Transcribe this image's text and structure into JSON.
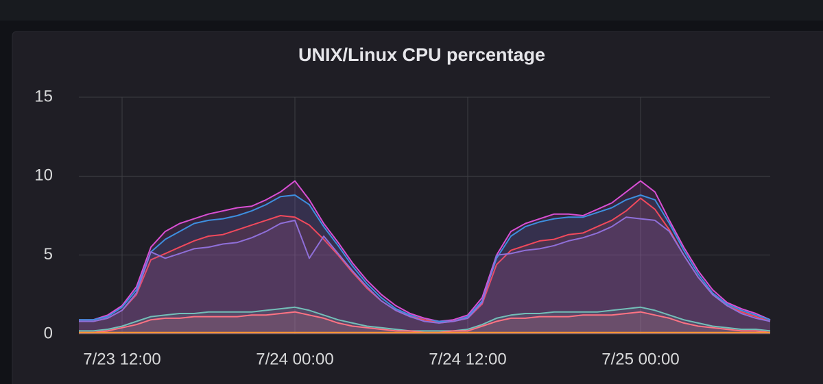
{
  "chart_data": {
    "type": "line",
    "title": "UNIX/Linux CPU percentage",
    "x": [
      "7/23 09:00",
      "7/23 10:00",
      "7/23 11:00",
      "7/23 12:00",
      "7/23 13:00",
      "7/23 14:00",
      "7/23 15:00",
      "7/23 16:00",
      "7/23 17:00",
      "7/23 18:00",
      "7/23 19:00",
      "7/23 20:00",
      "7/23 21:00",
      "7/23 22:00",
      "7/23 23:00",
      "7/24 00:00",
      "7/24 01:00",
      "7/24 02:00",
      "7/24 03:00",
      "7/24 04:00",
      "7/24 05:00",
      "7/24 06:00",
      "7/24 07:00",
      "7/24 08:00",
      "7/24 09:00",
      "7/24 10:00",
      "7/24 11:00",
      "7/24 12:00",
      "7/24 13:00",
      "7/24 14:00",
      "7/24 15:00",
      "7/24 16:00",
      "7/24 17:00",
      "7/24 18:00",
      "7/24 19:00",
      "7/24 20:00",
      "7/24 21:00",
      "7/24 22:00",
      "7/24 23:00",
      "7/25 00:00",
      "7/25 01:00",
      "7/25 02:00",
      "7/25 03:00",
      "7/25 04:00",
      "7/25 05:00",
      "7/25 06:00",
      "7/25 07:00",
      "7/25 08:00",
      "7/25 09:00"
    ],
    "series": [
      {
        "color": "#d94fd4",
        "values": [
          0.9,
          0.9,
          1.2,
          1.8,
          3,
          5.5,
          6.5,
          7,
          7.3,
          7.6,
          7.8,
          8,
          8.1,
          8.5,
          9,
          9.7,
          8.5,
          7,
          5.8,
          4.5,
          3.4,
          2.5,
          1.8,
          1.3,
          1,
          0.8,
          0.9,
          1.2,
          2.3,
          5,
          6.5,
          7,
          7.3,
          7.6,
          7.6,
          7.5,
          7.9,
          8.3,
          9,
          9.7,
          9,
          7.2,
          5.5,
          4,
          2.8,
          2,
          1.6,
          1.3,
          0.9
        ]
      },
      {
        "color": "#3d8fe0",
        "values": [
          0.9,
          0.9,
          1.1,
          1.7,
          2.8,
          5.2,
          6,
          6.5,
          7,
          7.2,
          7.3,
          7.5,
          7.8,
          8.2,
          8.7,
          8.8,
          8.2,
          6.8,
          5.6,
          4.3,
          3.2,
          2.3,
          1.6,
          1.2,
          0.9,
          0.8,
          0.8,
          1.1,
          2.1,
          4.8,
          6.2,
          6.8,
          7.1,
          7.3,
          7.4,
          7.4,
          7.7,
          8,
          8.5,
          8.8,
          8.5,
          7,
          5.3,
          3.8,
          2.6,
          1.9,
          1.5,
          1.2,
          0.9
        ]
      },
      {
        "color": "#f2495c",
        "values": [
          0.8,
          0.8,
          1,
          1.5,
          2.5,
          4.7,
          5.1,
          5.5,
          5.9,
          6.2,
          6.3,
          6.6,
          6.9,
          7.2,
          7.5,
          7.4,
          6.9,
          6,
          5,
          3.9,
          2.9,
          2.1,
          1.5,
          1.1,
          0.9,
          0.7,
          0.8,
          1,
          1.9,
          4.4,
          5.3,
          5.6,
          5.9,
          6,
          6.3,
          6.4,
          6.8,
          7.2,
          7.8,
          8.6,
          7.9,
          6.6,
          5,
          3.6,
          2.5,
          1.8,
          1.4,
          1.1,
          0.8
        ]
      },
      {
        "color": "#8f6fd9",
        "values": [
          0.8,
          0.8,
          1,
          1.5,
          2.6,
          5.2,
          4.8,
          5.1,
          5.4,
          5.5,
          5.7,
          5.8,
          6.1,
          6.5,
          7,
          7.2,
          4.8,
          6.2,
          5.1,
          4,
          3,
          2.1,
          1.5,
          1.1,
          0.8,
          0.7,
          0.8,
          1,
          2,
          5,
          5.1,
          5.3,
          5.4,
          5.6,
          5.9,
          6.1,
          6.4,
          6.8,
          7.4,
          7.3,
          7.2,
          6.5,
          5,
          3.6,
          2.5,
          1.8,
          1.3,
          1,
          0.8
        ]
      },
      {
        "color": "#73bfb8",
        "values": [
          0.2,
          0.2,
          0.3,
          0.5,
          0.8,
          1.1,
          1.2,
          1.3,
          1.3,
          1.4,
          1.4,
          1.4,
          1.4,
          1.5,
          1.6,
          1.7,
          1.5,
          1.2,
          0.9,
          0.7,
          0.5,
          0.4,
          0.3,
          0.2,
          0.2,
          0.2,
          0.2,
          0.3,
          0.6,
          1,
          1.2,
          1.3,
          1.3,
          1.4,
          1.4,
          1.4,
          1.4,
          1.5,
          1.6,
          1.7,
          1.5,
          1.2,
          0.9,
          0.7,
          0.5,
          0.4,
          0.3,
          0.3,
          0.2
        ]
      },
      {
        "color": "#ff7383",
        "values": [
          0.1,
          0.1,
          0.2,
          0.4,
          0.6,
          0.9,
          1,
          1,
          1.1,
          1.1,
          1.1,
          1.1,
          1.2,
          1.2,
          1.3,
          1.4,
          1.2,
          1,
          0.7,
          0.5,
          0.4,
          0.3,
          0.2,
          0.2,
          0.1,
          0.1,
          0.2,
          0.2,
          0.5,
          0.8,
          1,
          1,
          1.1,
          1.1,
          1.1,
          1.2,
          1.2,
          1.2,
          1.3,
          1.4,
          1.2,
          1,
          0.7,
          0.5,
          0.4,
          0.3,
          0.2,
          0.2,
          0.1
        ]
      },
      {
        "color": "#ff9830",
        "values": [
          0.1,
          0.1,
          0.1,
          0.1,
          0.1,
          0.1,
          0.1,
          0.1,
          0.1,
          0.1,
          0.1,
          0.1,
          0.1,
          0.1,
          0.1,
          0.1,
          0.1,
          0.1,
          0.1,
          0.1,
          0.1,
          0.1,
          0.1,
          0.1,
          0.1,
          0.1,
          0.1,
          0.1,
          0.1,
          0.1,
          0.1,
          0.1,
          0.1,
          0.1,
          0.1,
          0.1,
          0.1,
          0.1,
          0.1,
          0.1,
          0.1,
          0.1,
          0.1,
          0.1,
          0.1,
          0.1,
          0.1,
          0.1,
          0.1
        ]
      }
    ],
    "xlim": [
      "7/23 09:00",
      "7/25 09:00"
    ],
    "xticks": [
      "7/23 12:00",
      "7/24 00:00",
      "7/24 12:00",
      "7/25 00:00"
    ],
    "ylim": [
      0,
      15
    ],
    "yticks": [
      0,
      5,
      10,
      15
    ],
    "grid": true,
    "fill_opacity": 0.12
  }
}
